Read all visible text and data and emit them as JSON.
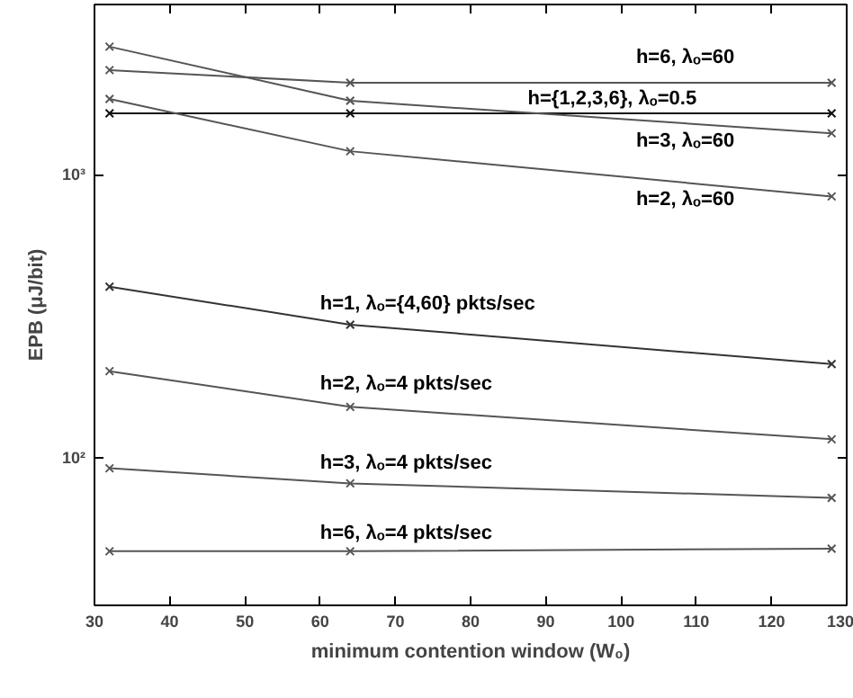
{
  "chart_data": {
    "type": "line",
    "xlabel": "minimum contention window (W₀)",
    "ylabel": "EPB (μJ/bit)",
    "x": [
      32,
      64,
      128
    ],
    "log": "y",
    "marker": "cross",
    "grid": false,
    "xlim": [
      30,
      130
    ],
    "xticks": [
      30,
      40,
      50,
      60,
      70,
      80,
      90,
      100,
      110,
      120,
      130
    ],
    "ylim": [
      30,
      4000
    ],
    "yticks": [
      {
        "value": 100,
        "label": "10²"
      },
      {
        "value": 1000,
        "label": "10³"
      }
    ],
    "series": [
      {
        "name": "h=6, λₒ=60",
        "color": "#555555",
        "values": [
          2345,
          2115,
          2115
        ]
      },
      {
        "name": "h={1,2,3,6}, λₒ=0.5",
        "color": "#111111",
        "values": [
          1648,
          1648,
          1648
        ]
      },
      {
        "name": "h=3, λₒ=60",
        "color": "#555555",
        "values": [
          2838,
          1827,
          1402
        ]
      },
      {
        "name": "h=2, λₒ=60",
        "color": "#555555",
        "values": [
          1854,
          1211,
          838
        ]
      },
      {
        "name": "h=1, λₒ={4,60} pkts/sec",
        "color": "#333333",
        "values": [
          402,
          295,
          214
        ]
      },
      {
        "name": "h=2, λₒ=4 pkts/sec",
        "color": "#555555",
        "values": [
          202,
          151,
          116
        ]
      },
      {
        "name": "h=3, λₒ=4 pkts/sec",
        "color": "#555555",
        "values": [
          91.6,
          81,
          72
        ]
      },
      {
        "name": "h=6, λₒ=4 pkts/sec",
        "color": "#555555",
        "values": [
          46.6,
          46.6,
          47.6
        ]
      }
    ]
  }
}
